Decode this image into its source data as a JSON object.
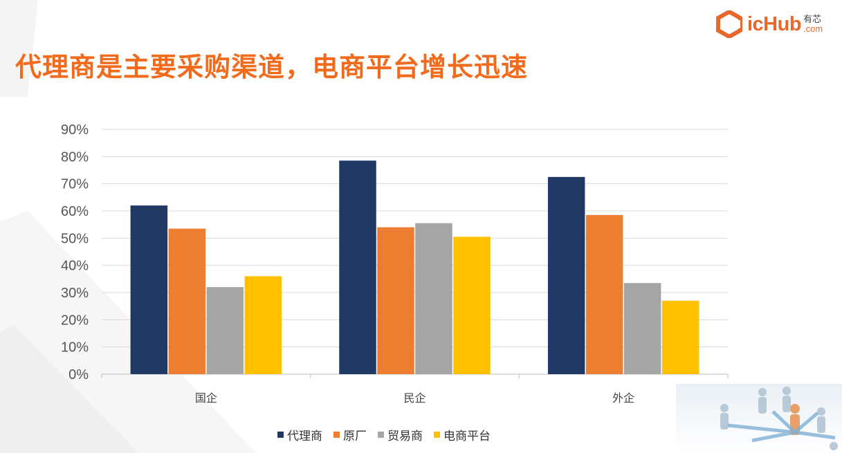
{
  "slide": {
    "title": "代理商是主要采购渠道，电商平台增长迅速",
    "logo": {
      "text": "icHub",
      "cn": "有芯",
      "com": ".com"
    }
  },
  "colors": {
    "title": "#f26b1d",
    "series": [
      "#1f3864",
      "#ed7d31",
      "#a5a5a5",
      "#ffc000"
    ]
  },
  "chart_data": {
    "type": "bar",
    "categories": [
      "国企",
      "民企",
      "外企"
    ],
    "series": [
      {
        "name": "代理商",
        "values": [
          0.62,
          0.785,
          0.725
        ]
      },
      {
        "name": "原厂",
        "values": [
          0.535,
          0.54,
          0.585
        ]
      },
      {
        "name": "贸易商",
        "values": [
          0.32,
          0.555,
          0.335
        ]
      },
      {
        "name": "电商平台",
        "values": [
          0.36,
          0.505,
          0.27
        ]
      }
    ],
    "yticks": [
      "0%",
      "10%",
      "20%",
      "30%",
      "40%",
      "50%",
      "60%",
      "70%",
      "80%",
      "90%"
    ],
    "ylim": [
      0,
      0.9
    ],
    "grid": true,
    "legend": "bottom"
  }
}
